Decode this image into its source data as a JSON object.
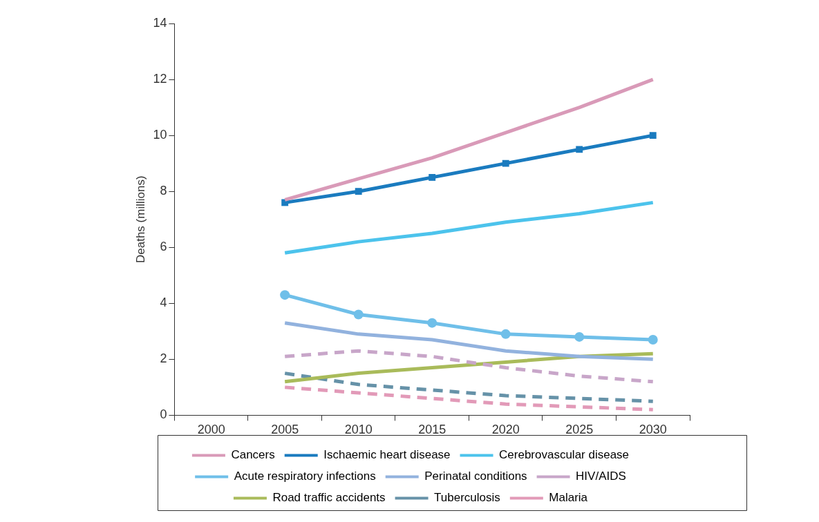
{
  "chart_data": {
    "type": "line",
    "ylabel": "Deaths (millions)",
    "categories": [
      "2000",
      "2005",
      "2010",
      "2015",
      "2020",
      "2025",
      "2030"
    ],
    "ylim": [
      0,
      14
    ],
    "yticks": [
      0,
      2,
      4,
      6,
      8,
      10,
      12,
      14
    ],
    "grid": false,
    "legend": "bottom",
    "series": [
      {
        "name": "Cancers",
        "color": "#d99ab8",
        "line_style": "solid",
        "marker": "none",
        "values": [
          null,
          7.7,
          8.45,
          9.2,
          10.1,
          11.0,
          12.0
        ]
      },
      {
        "name": "Ischaemic heart disease",
        "color": "#1a7bbf",
        "line_style": "solid",
        "marker": "square",
        "values": [
          null,
          7.6,
          8.0,
          8.5,
          9.0,
          9.5,
          10.0
        ]
      },
      {
        "name": "Cerebrovascular disease",
        "color": "#4cc3ec",
        "line_style": "solid",
        "marker": "none",
        "values": [
          null,
          5.8,
          6.2,
          6.5,
          6.9,
          7.2,
          7.6
        ]
      },
      {
        "name": "Acute respiratory infections",
        "color": "#6fbfe9",
        "line_style": "solid",
        "marker": "circle",
        "values": [
          null,
          4.3,
          3.6,
          3.3,
          2.9,
          2.8,
          2.7
        ]
      },
      {
        "name": "Perinatal conditions",
        "color": "#92b2de",
        "line_style": "solid",
        "marker": "none",
        "values": [
          null,
          3.3,
          2.9,
          2.7,
          2.3,
          2.1,
          2.0
        ]
      },
      {
        "name": "HIV/AIDS",
        "color": "#c8a6c9",
        "line_style": "dashed",
        "marker": "none",
        "values": [
          null,
          2.1,
          2.3,
          2.1,
          1.7,
          1.4,
          1.2
        ]
      },
      {
        "name": "Road traffic accidents",
        "color": "#a9bb5a",
        "line_style": "solid",
        "marker": "none",
        "values": [
          null,
          1.2,
          1.5,
          1.7,
          1.9,
          2.1,
          2.2
        ]
      },
      {
        "name": "Tuberculosis",
        "color": "#6692a8",
        "line_style": "dashed",
        "marker": "none",
        "values": [
          null,
          1.5,
          1.1,
          0.9,
          0.7,
          0.6,
          0.5
        ]
      },
      {
        "name": "Malaria",
        "color": "#e29ab8",
        "line_style": "dashed",
        "marker": "none",
        "values": [
          null,
          1.0,
          0.8,
          0.6,
          0.4,
          0.3,
          0.2
        ]
      }
    ]
  }
}
